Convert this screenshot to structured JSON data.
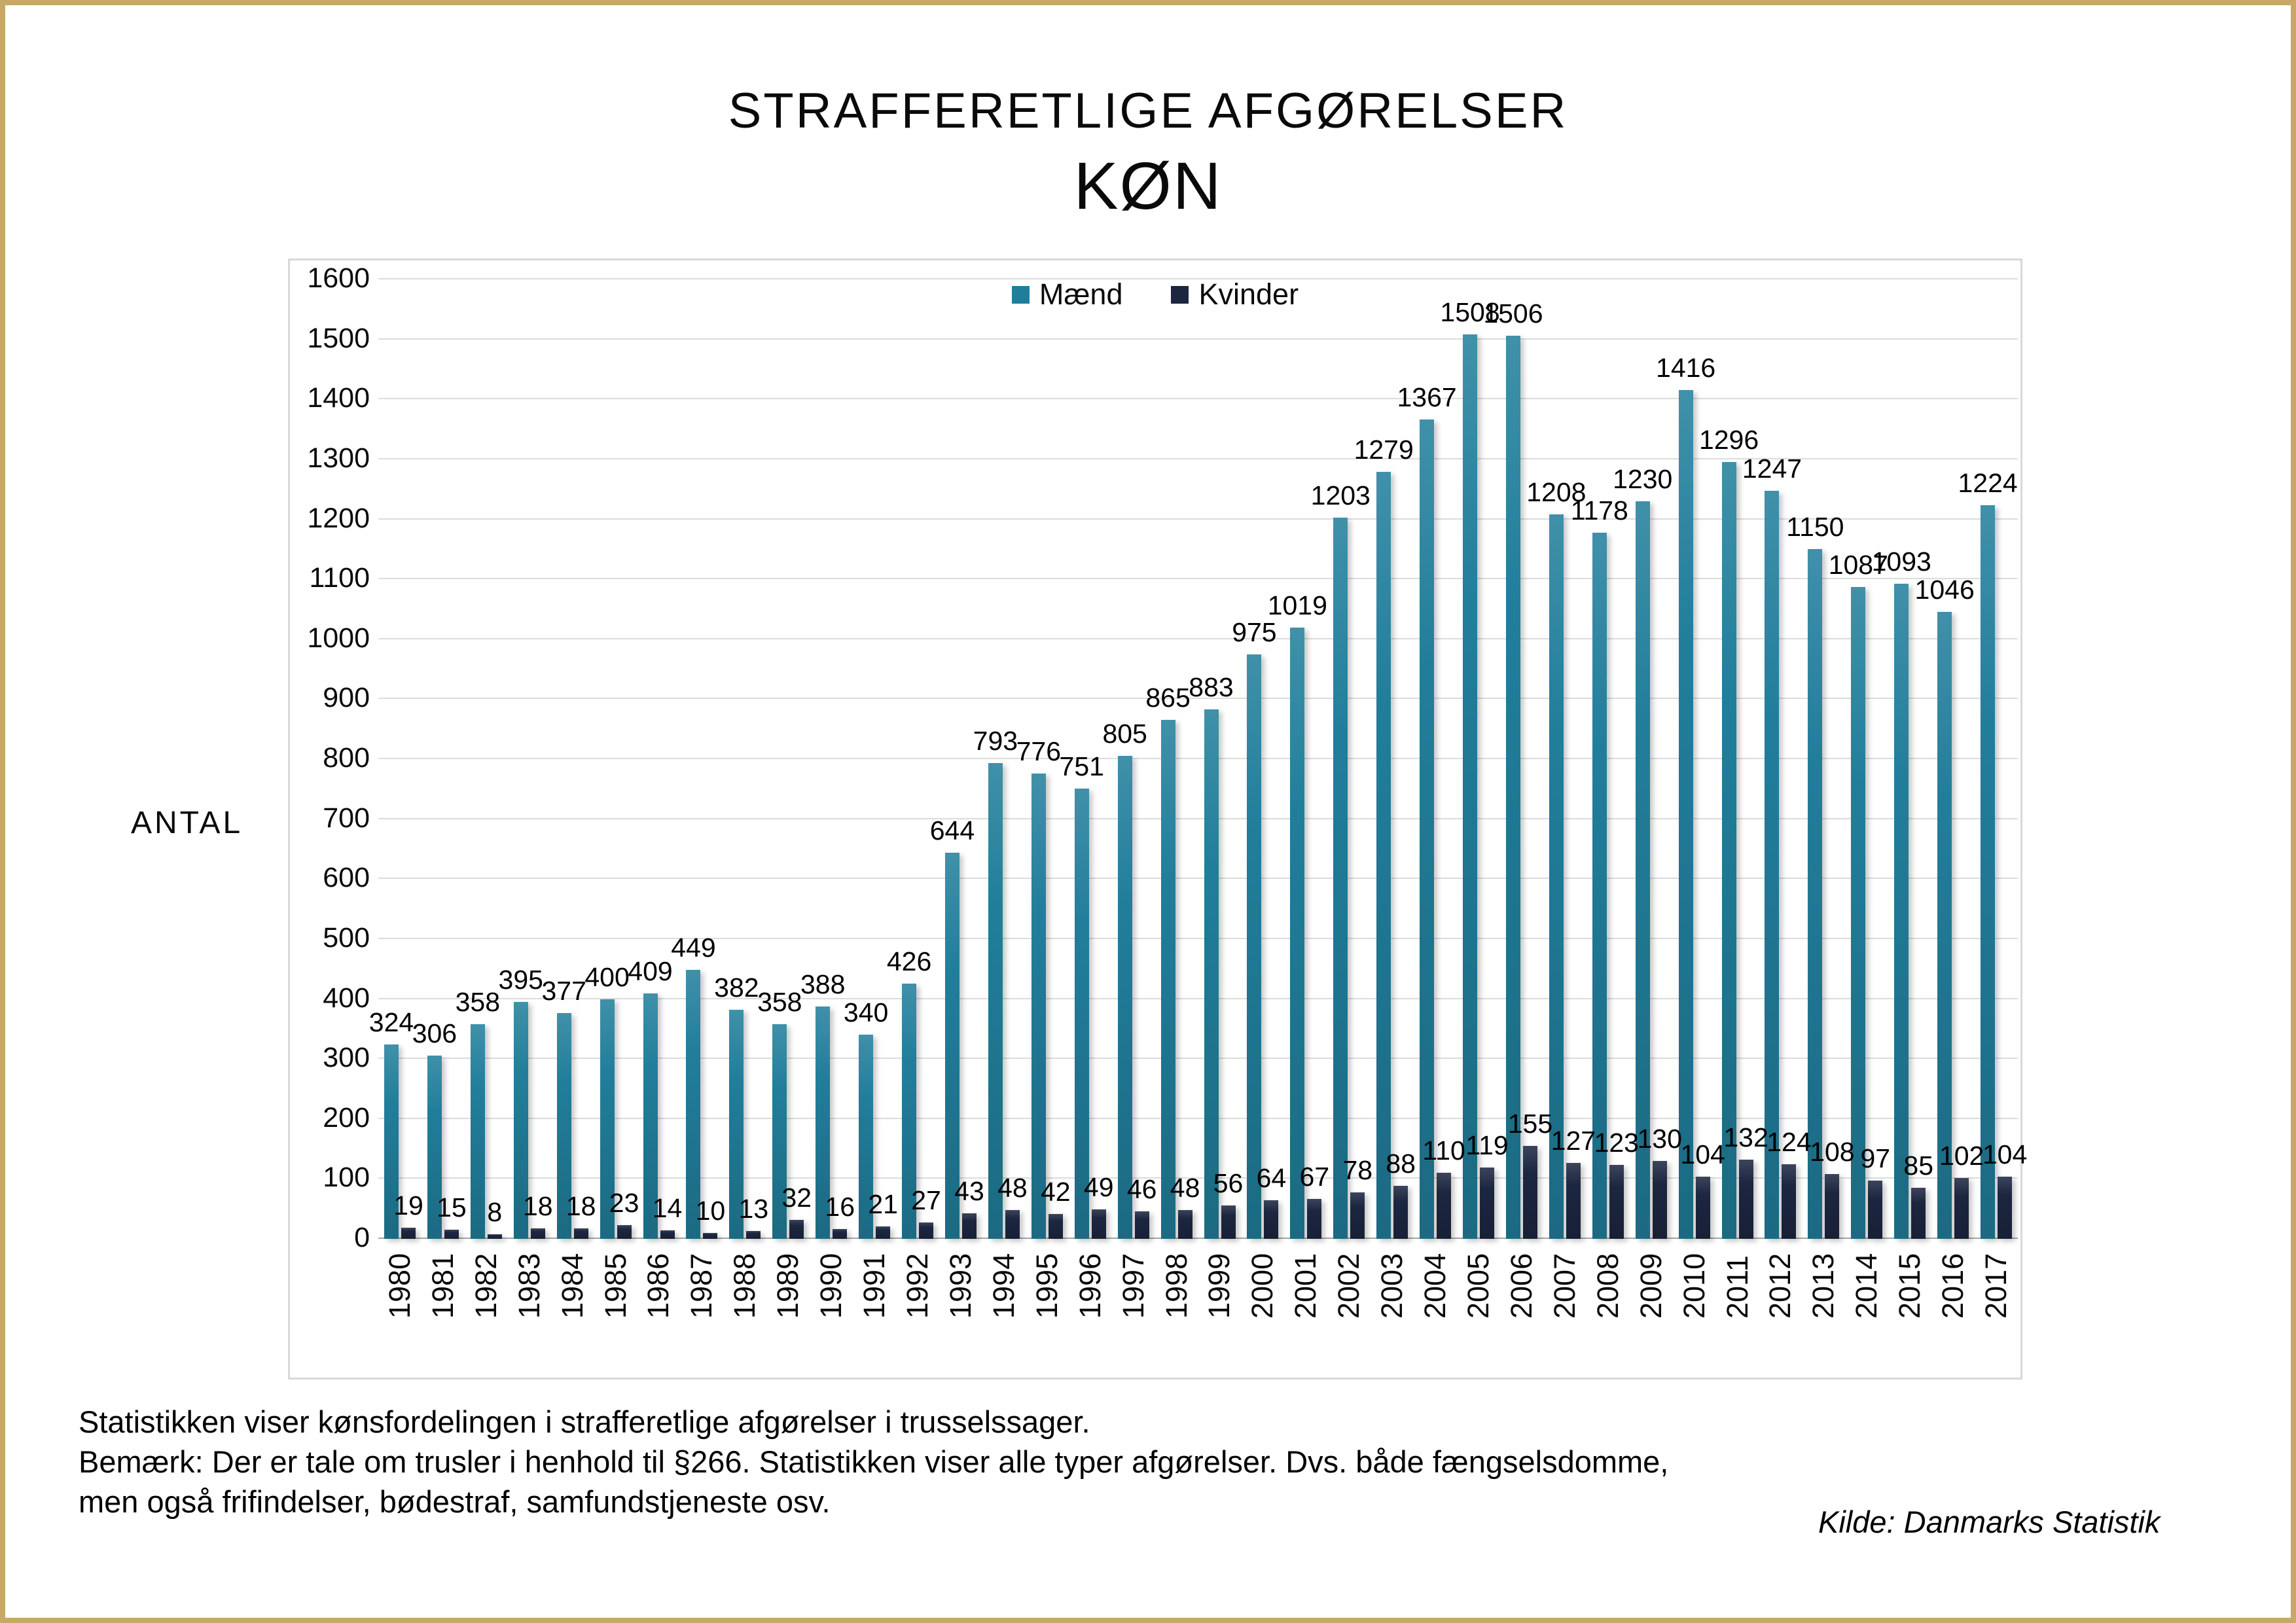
{
  "frame": {
    "border_color": "#C8A866",
    "background": "#FFFFFF"
  },
  "chart_data": {
    "type": "bar",
    "title": "STRAFFERETLIGE AFGØRELSER",
    "subtitle": "KØN",
    "ylabel": "ANTAL",
    "xlabel": "",
    "ylim": [
      0,
      1600
    ],
    "ytick_step": 100,
    "grid": true,
    "legend_position": "top-center",
    "gridline_color": "#DCDCDC",
    "axis_line_color": "#A6A6A6",
    "categories": [
      "1980",
      "1981",
      "1982",
      "1983",
      "1984",
      "1985",
      "1986",
      "1987",
      "1988",
      "1989",
      "1990",
      "1991",
      "1992",
      "1993",
      "1994",
      "1995",
      "1996",
      "1997",
      "1998",
      "1999",
      "2000",
      "2001",
      "2002",
      "2003",
      "2004",
      "2005",
      "2006",
      "2007",
      "2008",
      "2009",
      "2010",
      "2011",
      "2012",
      "2013",
      "2014",
      "2015",
      "2016",
      "2017"
    ],
    "series": [
      {
        "name": "Mænd",
        "color": "#217E9B",
        "values": [
          324,
          306,
          358,
          395,
          377,
          400,
          409,
          449,
          382,
          358,
          388,
          340,
          426,
          644,
          793,
          776,
          751,
          805,
          865,
          883,
          975,
          1019,
          1203,
          1279,
          1367,
          1508,
          1506,
          1208,
          1178,
          1230,
          1416,
          1296,
          1247,
          1150,
          1087,
          1093,
          1046,
          1224
        ]
      },
      {
        "name": "Kvinder",
        "color": "#1C2640",
        "values": [
          19,
          15,
          8,
          18,
          18,
          23,
          14,
          10,
          13,
          32,
          16,
          21,
          27,
          43,
          48,
          42,
          49,
          46,
          48,
          56,
          64,
          67,
          78,
          88,
          110,
          119,
          155,
          127,
          123,
          130,
          104,
          132,
          124,
          108,
          97,
          85,
          102,
          104
        ]
      }
    ]
  },
  "footer": {
    "line1": "Statistikken viser kønsfordelingen i strafferetlige afgørelser i trusselssager.",
    "line2": "Bemærk: Der er tale om trusler i henhold til §266. Statistikken viser alle typer afgørelser. Dvs. både fængselsdomme,",
    "line3": "men også frifindelser, bødestraf, samfundstjeneste osv.",
    "source": "Kilde: Danmarks Statistik"
  }
}
